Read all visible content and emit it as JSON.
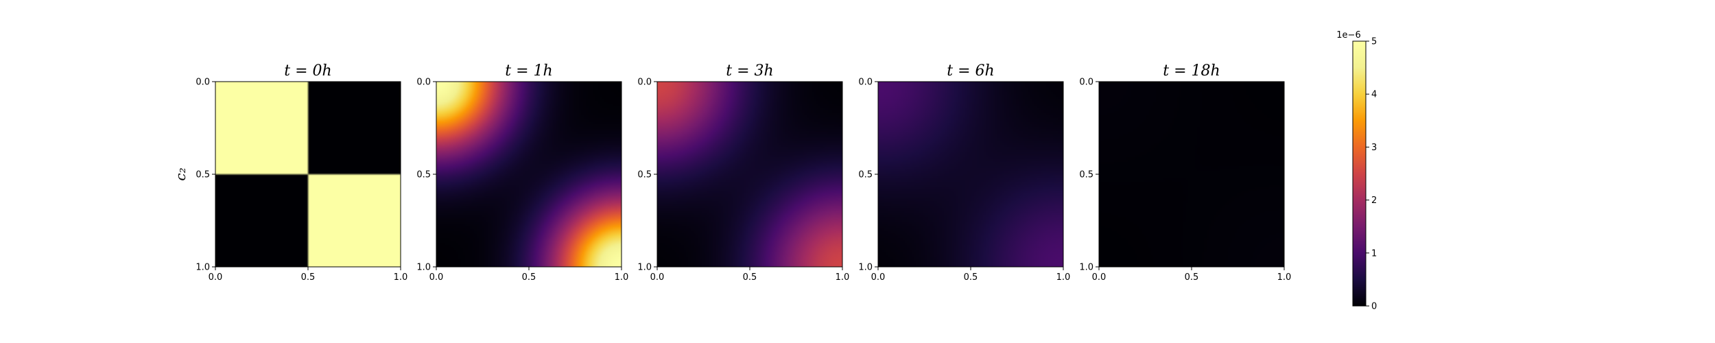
{
  "chart_data": {
    "type": "heatmap",
    "colormap": "inferno",
    "ylabel": "c₂",
    "x_ticks": [
      "0.0",
      "0.5",
      "1.0"
    ],
    "y_ticks": [
      "0.0",
      "0.5",
      "1.0"
    ],
    "xlim": [
      0,
      1
    ],
    "ylim": [
      0,
      1
    ],
    "panels": [
      {
        "title": "t = 0h",
        "mode": "block",
        "peak": 5.0,
        "width": 0
      },
      {
        "title": "t = 1h",
        "mode": "blob",
        "peak": 5.0,
        "width": 0.26
      },
      {
        "title": "t = 3h",
        "mode": "blob",
        "peak": 2.5,
        "width": 0.3
      },
      {
        "title": "t = 6h",
        "mode": "blob",
        "peak": 1.0,
        "width": 0.36
      },
      {
        "title": "t = 18h",
        "mode": "blob",
        "peak": 0.05,
        "width": 0.4
      }
    ],
    "colorbar": {
      "ticks": [
        "0",
        "1",
        "2",
        "3",
        "4",
        "5"
      ],
      "range": [
        0,
        5
      ],
      "exponent_label": "1e−6"
    }
  }
}
